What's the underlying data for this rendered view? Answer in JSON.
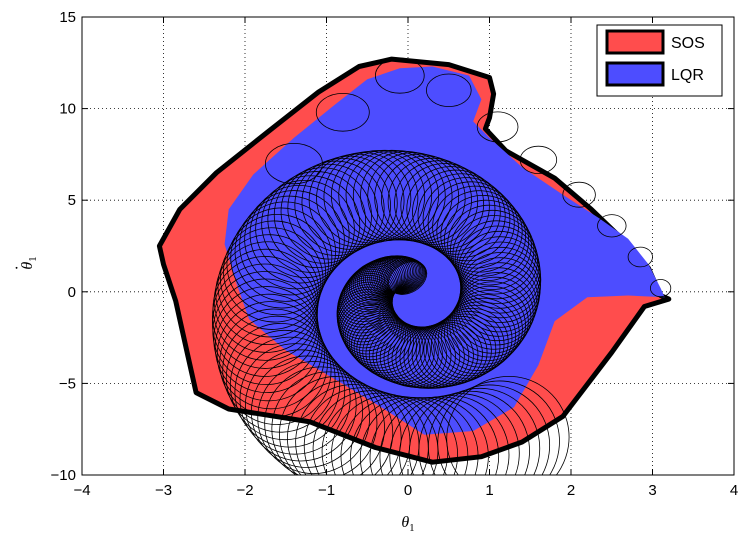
{
  "chart_data": {
    "type": "area",
    "xlabel": "θ1",
    "ylabel": "θ̇1",
    "xlim": [
      -4,
      4
    ],
    "ylim": [
      -10,
      15
    ],
    "xticks": [
      -4,
      -3,
      -2,
      -1,
      0,
      1,
      2,
      3,
      4
    ],
    "yticks": [
      -10,
      -5,
      0,
      5,
      10,
      15
    ],
    "xtick_labels": [
      "−4",
      "−3",
      "−2",
      "−1",
      "0",
      "1",
      "2",
      "3",
      "4"
    ],
    "ytick_labels": [
      "−10",
      "−5",
      "0",
      "5",
      "10",
      "15"
    ],
    "grid": true,
    "legend_position": "top-right",
    "colors": {
      "sos": "#ff4d4d",
      "lqr": "#4d4dff",
      "ellipse": "#000000",
      "outline": "#000000"
    },
    "series": [
      {
        "name": "SOS",
        "color": "#ff4d4d",
        "boundary": [
          [
            3.2,
            -0.4
          ],
          [
            3.1,
            -0.2
          ],
          [
            2.95,
            1.3
          ],
          [
            2.6,
            3.0
          ],
          [
            2.25,
            4.5
          ],
          [
            1.8,
            6.2
          ],
          [
            1.2,
            7.7
          ],
          [
            0.95,
            8.9
          ],
          [
            1.0,
            9.5
          ],
          [
            1.05,
            10.8
          ],
          [
            1.0,
            11.7
          ],
          [
            0.5,
            12.4
          ],
          [
            -0.2,
            12.7
          ],
          [
            -0.6,
            12.3
          ],
          [
            -1.1,
            10.9
          ],
          [
            -1.7,
            8.8
          ],
          [
            -2.35,
            6.5
          ],
          [
            -2.8,
            4.5
          ],
          [
            -3.05,
            2.5
          ],
          [
            -3.0,
            1.5
          ],
          [
            -2.85,
            -0.5
          ],
          [
            -2.7,
            -3.5
          ],
          [
            -2.6,
            -5.5
          ],
          [
            -2.2,
            -6.4
          ],
          [
            -1.2,
            -7.1
          ],
          [
            -0.4,
            -8.5
          ],
          [
            0.3,
            -9.3
          ],
          [
            0.9,
            -9.0
          ],
          [
            1.4,
            -8.2
          ],
          [
            1.9,
            -6.8
          ],
          [
            2.5,
            -3.3
          ],
          [
            2.9,
            -0.8
          ]
        ]
      },
      {
        "name": "LQR",
        "color": "#4d4dff",
        "boundary": [
          [
            3.15,
            -0.3
          ],
          [
            3.1,
            0.2
          ],
          [
            2.95,
            1.5
          ],
          [
            2.7,
            2.9
          ],
          [
            2.35,
            4.0
          ],
          [
            1.9,
            5.3
          ],
          [
            1.4,
            6.8
          ],
          [
            1.0,
            8.4
          ],
          [
            0.8,
            9.3
          ],
          [
            0.9,
            10.5
          ],
          [
            0.75,
            11.8
          ],
          [
            0.3,
            12.3
          ],
          [
            -0.1,
            12.2
          ],
          [
            -0.5,
            11.6
          ],
          [
            -0.9,
            10.2
          ],
          [
            -1.4,
            8.4
          ],
          [
            -1.9,
            6.4
          ],
          [
            -2.2,
            4.5
          ],
          [
            -2.25,
            2.6
          ],
          [
            -2.1,
            0.4
          ],
          [
            -1.95,
            -1.5
          ],
          [
            -1.5,
            -3.2
          ],
          [
            -1.0,
            -4.5
          ],
          [
            -0.4,
            -6.1
          ],
          [
            0.2,
            -7.8
          ],
          [
            0.8,
            -7.6
          ],
          [
            1.3,
            -6.3
          ],
          [
            1.6,
            -4.0
          ],
          [
            1.8,
            -1.6
          ],
          [
            2.2,
            -0.3
          ],
          [
            2.7,
            -0.2
          ]
        ]
      }
    ],
    "legend": [
      {
        "label": "SOS",
        "color": "#ff4d4d"
      },
      {
        "label": "LQR",
        "color": "#4d4dff"
      }
    ]
  }
}
